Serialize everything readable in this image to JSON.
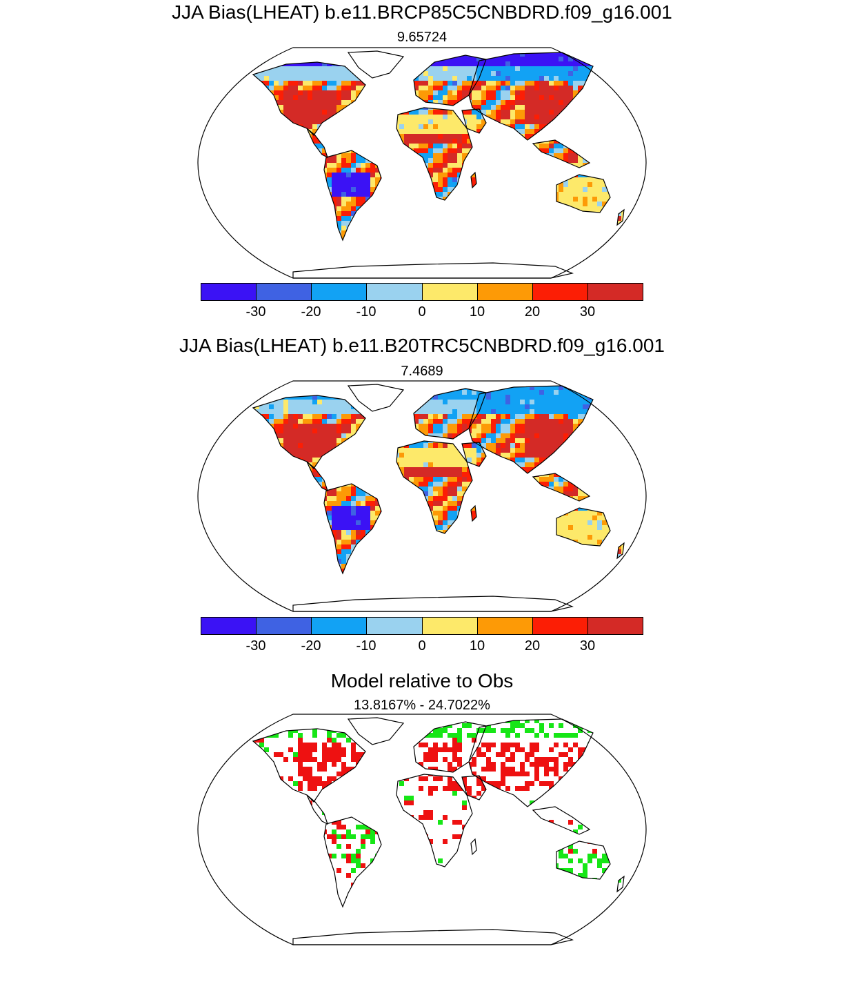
{
  "panels": [
    {
      "title": "JJA Bias(LHEAT) b.e11.BRCP85C5CNBDRD.f09_g16.001",
      "subtitle": "9.65724",
      "type": "bias"
    },
    {
      "title": "JJA Bias(LHEAT) b.e11.B20TRC5CNBDRD.f09_g16.001",
      "subtitle": "7.4689",
      "type": "bias"
    },
    {
      "title": "Model relative to Obs",
      "subtitle": "13.8167% - 24.7022%",
      "type": "relative"
    }
  ],
  "colorbar": {
    "colors": [
      "#3b12f5",
      "#3f62e3",
      "#12a2f4",
      "#9ad2ef",
      "#fde96a",
      "#fd9a06",
      "#fc1e05",
      "#d42a26"
    ],
    "tick_labels": [
      "-30",
      "-20",
      "-10",
      "0",
      "10",
      "20",
      "30"
    ]
  },
  "relative_colors": {
    "better": "#16e616",
    "worse": "#ee1111"
  }
}
